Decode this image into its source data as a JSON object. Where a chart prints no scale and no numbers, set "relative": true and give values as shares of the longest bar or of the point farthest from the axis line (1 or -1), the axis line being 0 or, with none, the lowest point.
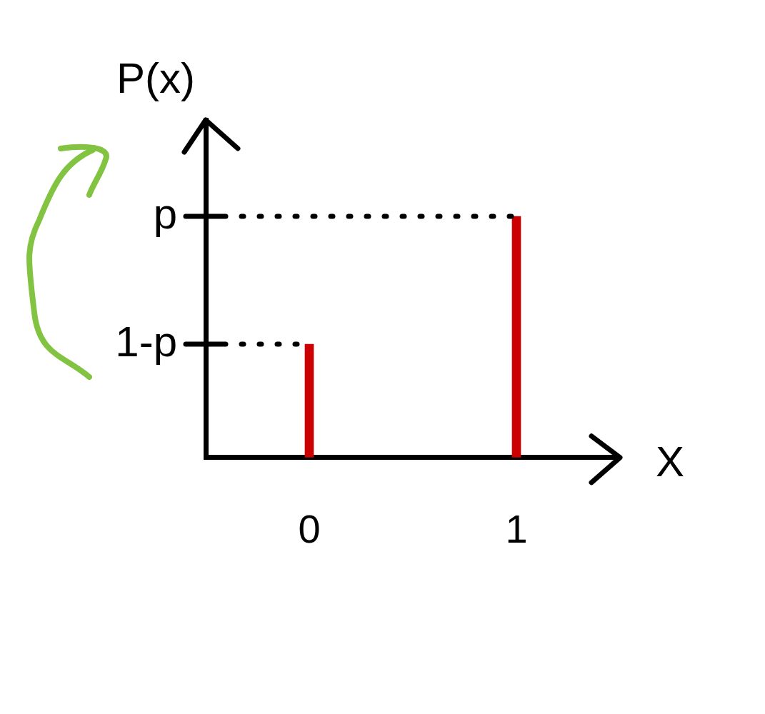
{
  "chart_data": {
    "type": "bar",
    "relative": true,
    "xlabel": "X",
    "ylabel": "P(x)",
    "categories": [
      "0",
      "1"
    ],
    "series": [
      {
        "color": "#cc0000",
        "values": [
          0.47,
          1
        ]
      }
    ],
    "ref_lines": [
      {
        "axis": "y",
        "value": 1,
        "label": "p",
        "line_style": "dotted",
        "color": "#000000"
      },
      {
        "axis": "y",
        "value": 0.47,
        "label": "1-p",
        "line_style": "dotted",
        "color": "#000000"
      }
    ],
    "grid": false,
    "legend": false
  }
}
